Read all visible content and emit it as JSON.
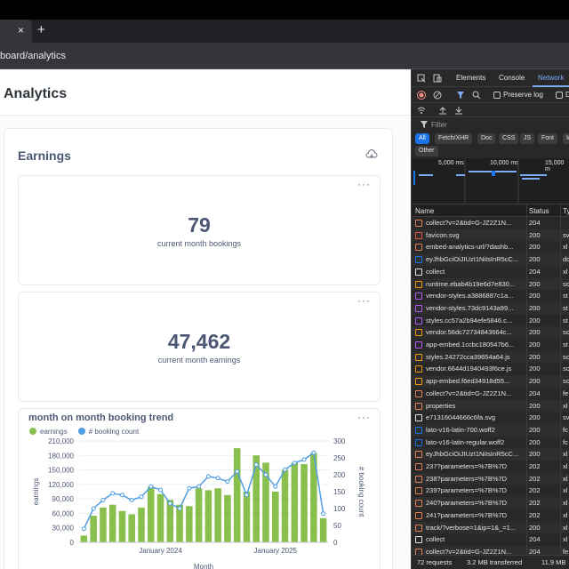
{
  "browser": {
    "tab_close": "×",
    "new_tab": "+",
    "url": "board/analytics"
  },
  "page": {
    "title": "Analytics",
    "card_title": "Earnings",
    "tile1": {
      "value": "79",
      "label": "current month bookings"
    },
    "tile2": {
      "value": "47,462",
      "label": "current month earnings"
    },
    "chart_title": "month on month booking trend",
    "menu_dots": "···"
  },
  "chart_data": {
    "type": "bar",
    "title": "month on month booking trend",
    "xlabel": "Month",
    "ylabel": "earnings",
    "y2label": "# booking count",
    "ylim": [
      0,
      210000
    ],
    "y2lim": [
      0,
      300
    ],
    "yticks": [
      "0",
      "30,000",
      "60,000",
      "90,000",
      "120,000",
      "150,000",
      "180,000",
      "210,000"
    ],
    "y2ticks": [
      "0",
      "50",
      "100",
      "150",
      "200",
      "250",
      "300"
    ],
    "xtick_labels": [
      {
        "label": "January 2024",
        "index": 8
      },
      {
        "label": "January 2025",
        "index": 20
      }
    ],
    "legend": [
      "earnings",
      "# booking count"
    ],
    "series": [
      {
        "name": "earnings",
        "kind": "bar",
        "color": "#88bf4d",
        "values": [
          14000,
          55000,
          72000,
          78000,
          65000,
          58000,
          72000,
          115000,
          100000,
          88000,
          78000,
          75000,
          112000,
          108000,
          112000,
          98000,
          195000,
          105000,
          180000,
          165000,
          105000,
          150000,
          165000,
          162000,
          185000,
          50000
        ]
      },
      {
        "name": "# booking count",
        "kind": "line",
        "color": "#509ee3",
        "values": [
          40,
          100,
          125,
          145,
          140,
          125,
          135,
          165,
          155,
          115,
          100,
          160,
          165,
          195,
          190,
          180,
          210,
          140,
          230,
          200,
          165,
          215,
          235,
          245,
          265,
          85
        ]
      }
    ]
  },
  "devtools": {
    "tabs": [
      "Elements",
      "Console",
      "Network"
    ],
    "preserve_log": "Preserve log",
    "disable_cache": "D",
    "filter_placeholder": "Filter",
    "chips": [
      "All",
      "Fetch/XHR",
      "Doc",
      "CSS",
      "JS",
      "Font",
      "In"
    ],
    "chip_other": "Other",
    "timeline": [
      "5,000 ms",
      "10,000 ms",
      "15,000 m"
    ],
    "columns": [
      "Name",
      "Status",
      "Ty"
    ],
    "rows": [
      {
        "name": "collect?v=2&tid=G-JZ2Z1N...",
        "status": "204",
        "type": "",
        "icon": "#e37d52"
      },
      {
        "name": "favicon.svg",
        "status": "200",
        "type": "sv",
        "icon": "#e8553e"
      },
      {
        "name": "embed-analytics-url/?dashb...",
        "status": "200",
        "type": "xl",
        "icon": "#e37d52"
      },
      {
        "name": "eyJhbGciOiJIUzI1NiIsInR5cC...",
        "status": "200",
        "type": "dc",
        "icon": "#1a73e8"
      },
      {
        "name": "collect",
        "status": "204",
        "type": "xl",
        "icon": "#e3e3e3"
      },
      {
        "name": "runtime.ebab4b19e6d7e830...",
        "status": "200",
        "type": "sc",
        "icon": "#f29900"
      },
      {
        "name": "vendor-styles.a3886887c1a...",
        "status": "200",
        "type": "st",
        "icon": "#af5cf7"
      },
      {
        "name": "vendor-styles.73dc9143a99...",
        "status": "200",
        "type": "st",
        "icon": "#af5cf7"
      },
      {
        "name": "styles.cc57a2b94efe5846.c...",
        "status": "200",
        "type": "st",
        "icon": "#af5cf7"
      },
      {
        "name": "vendor.56dc72734843664c...",
        "status": "200",
        "type": "sc",
        "icon": "#f29900"
      },
      {
        "name": "app-embed.1ccbc180547b6...",
        "status": "200",
        "type": "st",
        "icon": "#af5cf7"
      },
      {
        "name": "styles.24272cca39654a64.js",
        "status": "200",
        "type": "sc",
        "icon": "#f29900"
      },
      {
        "name": "vendor.6644d1940493f6ce.js",
        "status": "200",
        "type": "sc",
        "icon": "#f29900"
      },
      {
        "name": "app-embed.f6ed34918d55...",
        "status": "200",
        "type": "sc",
        "icon": "#f29900"
      },
      {
        "name": "collect?v=2&tid=G-JZ2Z1N...",
        "status": "204",
        "type": "fe",
        "icon": "#e37d52"
      },
      {
        "name": "properties",
        "status": "200",
        "type": "xl",
        "icon": "#e37d52"
      },
      {
        "name": "e71316044666c6fa.svg",
        "status": "200",
        "type": "sv",
        "icon": "#e3e3e3"
      },
      {
        "name": "lato-v16-latin-700.woff2",
        "status": "200",
        "type": "fc",
        "icon": "#1a73e8"
      },
      {
        "name": "lato-v16-latin-regular.woff2",
        "status": "200",
        "type": "fc",
        "icon": "#1a73e8"
      },
      {
        "name": "eyJhbGciOiJIUzI1NiIsInR5cC...",
        "status": "200",
        "type": "xl",
        "icon": "#e37d52"
      },
      {
        "name": "237?parameters=%7B%7D",
        "status": "202",
        "type": "xl",
        "icon": "#e37d52"
      },
      {
        "name": "238?parameters=%7B%7D",
        "status": "202",
        "type": "xl",
        "icon": "#e37d52"
      },
      {
        "name": "239?parameters=%7B%7D",
        "status": "202",
        "type": "xl",
        "icon": "#e37d52"
      },
      {
        "name": "240?parameters=%7B%7D",
        "status": "202",
        "type": "xl",
        "icon": "#e37d52"
      },
      {
        "name": "241?parameters=%7B%7D",
        "status": "202",
        "type": "xl",
        "icon": "#e37d52"
      },
      {
        "name": "track/?verbose=1&ip=1&_=1...",
        "status": "200",
        "type": "xl",
        "icon": "#e37d52"
      },
      {
        "name": "collect",
        "status": "204",
        "type": "xl",
        "icon": "#e3e3e3"
      },
      {
        "name": "collect?v=2&tid=G-JZ2Z1N...",
        "status": "204",
        "type": "fe",
        "icon": "#e37d52"
      }
    ],
    "footer": {
      "requests": "72 requests",
      "transferred": "3.2 MB transferred",
      "resources": "11.9 MB"
    }
  }
}
